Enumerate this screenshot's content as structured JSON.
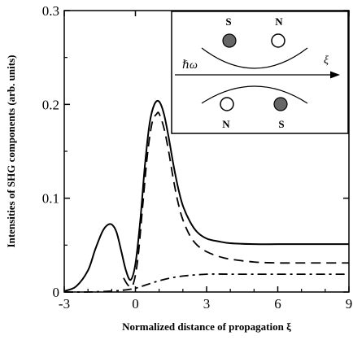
{
  "chart_data": {
    "type": "line",
    "title": "",
    "xlabel": "Normalized distance of propagation ξ",
    "ylabel": "Intensities of SHG components (arb. units)",
    "xlim": [
      -3,
      9
    ],
    "ylim": [
      0,
      0.3
    ],
    "x_ticks": [
      "-3",
      "0",
      "3",
      "6",
      "9"
    ],
    "y_ticks": [
      "0",
      "0.1",
      "0.2",
      "0.3"
    ],
    "grid": false,
    "legend": "none",
    "series": [
      {
        "style": "solid",
        "x": [
          -3.0,
          -2.5,
          -2.0,
          -1.7,
          -1.4,
          -1.2,
          -1.0,
          -0.8,
          -0.6,
          -0.4,
          -0.2,
          0.0,
          0.2,
          0.4,
          0.6,
          0.8,
          1.0,
          1.2,
          1.4,
          1.6,
          1.8,
          2.0,
          2.3,
          2.6,
          3.0,
          3.5,
          4.0,
          5.0,
          6.0,
          7.0,
          8.0,
          9.0
        ],
        "y": [
          0.001,
          0.006,
          0.023,
          0.045,
          0.064,
          0.071,
          0.072,
          0.064,
          0.044,
          0.023,
          0.013,
          0.03,
          0.075,
          0.135,
          0.18,
          0.2,
          0.203,
          0.19,
          0.165,
          0.136,
          0.111,
          0.092,
          0.075,
          0.064,
          0.057,
          0.054,
          0.052,
          0.051,
          0.051,
          0.051,
          0.051,
          0.051
        ]
      },
      {
        "style": "dashed",
        "x": [
          -0.5,
          -0.3,
          -0.1,
          0.1,
          0.3,
          0.5,
          0.7,
          0.9,
          1.0,
          1.2,
          1.4,
          1.6,
          1.8,
          2.0,
          2.3,
          2.6,
          3.0,
          3.5,
          4.0,
          5.0,
          6.0,
          7.0,
          8.0,
          9.0
        ],
        "y": [
          0.015,
          0.007,
          0.008,
          0.035,
          0.09,
          0.145,
          0.18,
          0.19,
          0.19,
          0.175,
          0.15,
          0.12,
          0.095,
          0.077,
          0.06,
          0.05,
          0.043,
          0.038,
          0.035,
          0.032,
          0.031,
          0.031,
          0.031,
          0.031
        ]
      },
      {
        "style": "dash-dot",
        "x": [
          -3.0,
          -2.0,
          -1.0,
          -0.5,
          0.0,
          0.5,
          1.0,
          1.5,
          2.0,
          3.0,
          4.0,
          5.0,
          6.0,
          7.0,
          8.0,
          9.0
        ],
        "y": [
          0.0,
          0.0,
          0.001,
          0.002,
          0.004,
          0.008,
          0.012,
          0.015,
          0.017,
          0.019,
          0.019,
          0.019,
          0.019,
          0.019,
          0.019,
          0.019
        ]
      }
    ],
    "inset": {
      "top_labels": [
        "S",
        "N"
      ],
      "bottom_labels": [
        "N",
        "S"
      ],
      "beam_label": "ℏω",
      "axis_label": "ξ",
      "colors": {
        "filled_circle": "#666666",
        "open_circle": "#ffffff"
      }
    }
  }
}
